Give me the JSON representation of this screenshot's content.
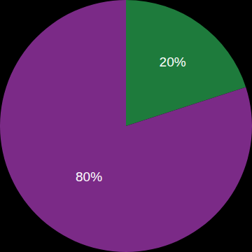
{
  "chart_data": {
    "type": "pie",
    "values": [
      20,
      80
    ],
    "value_labels": [
      "20%",
      "80%"
    ],
    "colors": [
      "#1e7b3c",
      "#7b2a87"
    ],
    "data_labels": true
  }
}
